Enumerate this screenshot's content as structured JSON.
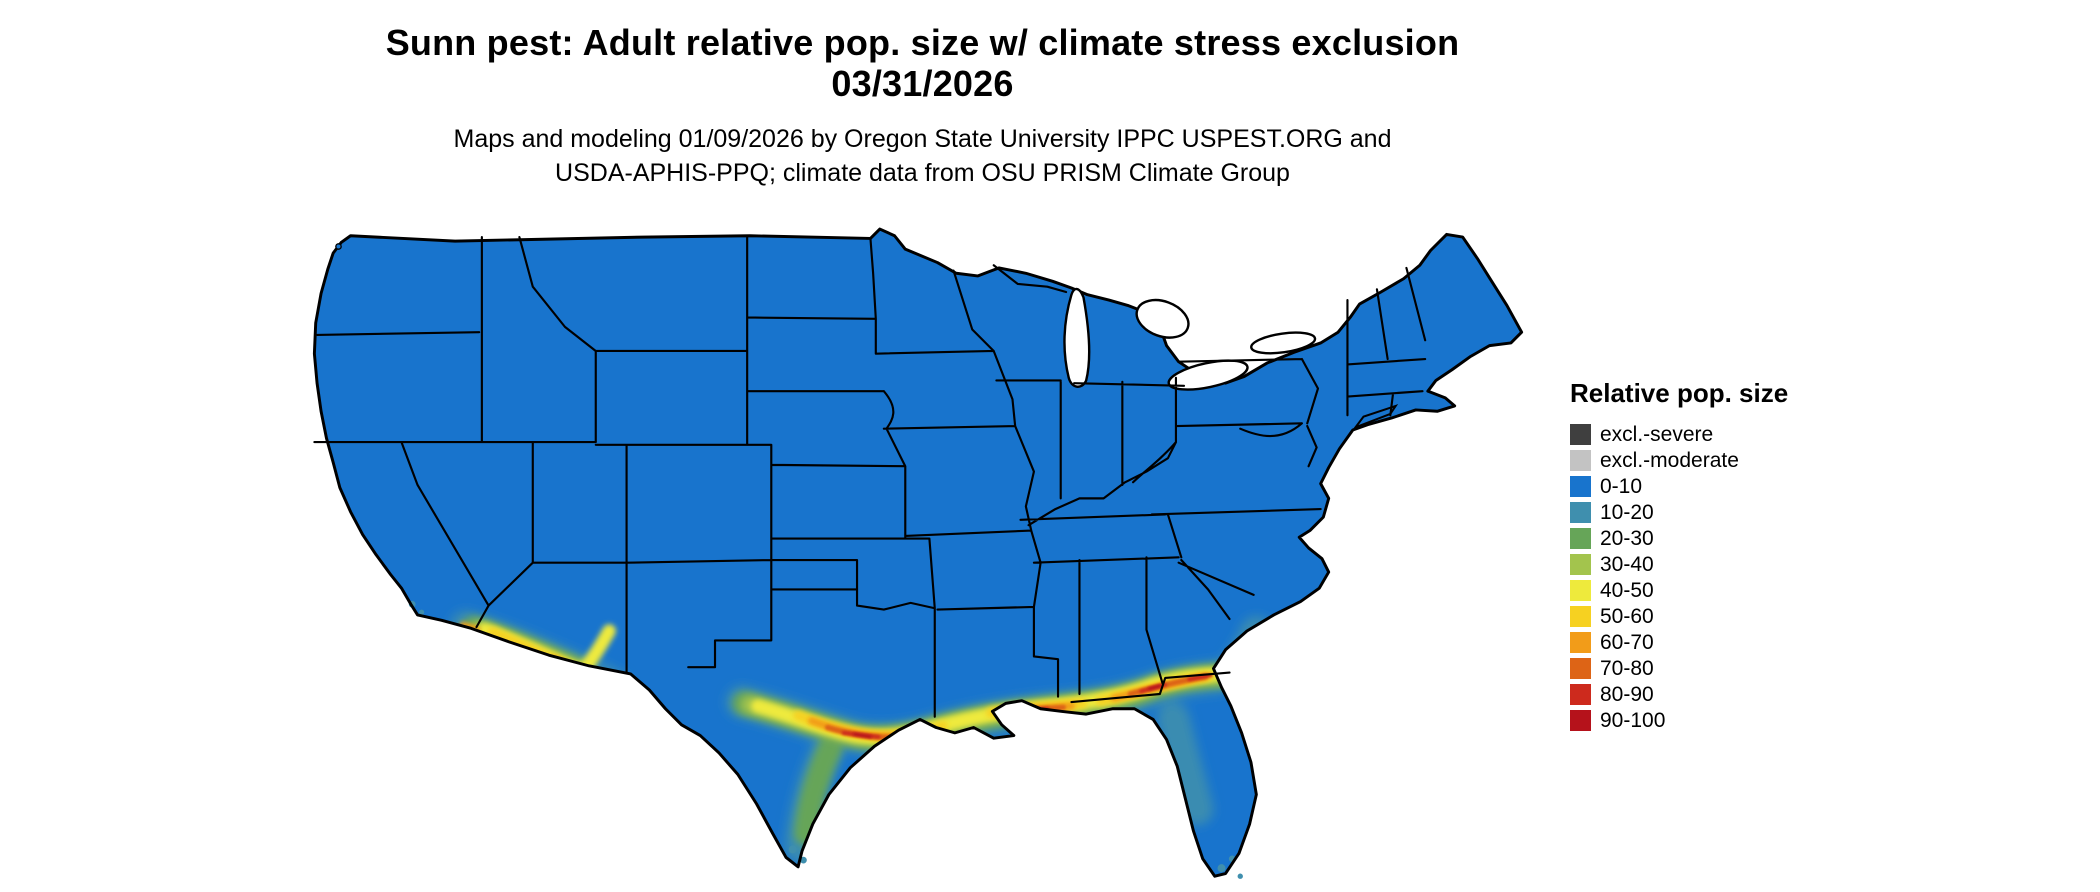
{
  "title": {
    "line1": "Sunn pest: Adult relative pop. size w/ climate stress exclusion",
    "line2": "03/31/2026"
  },
  "subtitle": {
    "line1": "Maps and modeling 01/09/2026 by Oregon State University IPPC USPEST.ORG and",
    "line2": "USDA-APHIS-PPQ; climate data from OSU PRISM Climate Group"
  },
  "legend": {
    "title": "Relative pop. size",
    "items": [
      {
        "label": "excl.-severe",
        "color": "#3f3f3f"
      },
      {
        "label": "excl.-moderate",
        "color": "#c3c3c3"
      },
      {
        "label": "0-10",
        "color": "#1874cd"
      },
      {
        "label": "10-20",
        "color": "#3f8fae"
      },
      {
        "label": "20-30",
        "color": "#66a558"
      },
      {
        "label": "30-40",
        "color": "#a3c44d"
      },
      {
        "label": "40-50",
        "color": "#eeea3c"
      },
      {
        "label": "50-60",
        "color": "#f6d121"
      },
      {
        "label": "60-70",
        "color": "#f29c19"
      },
      {
        "label": "70-80",
        "color": "#dd6416"
      },
      {
        "label": "80-90",
        "color": "#cd2a1d"
      },
      {
        "label": "90-100",
        "color": "#b5121b"
      }
    ]
  },
  "map": {
    "land_color": "#1874cd",
    "border_color": "#000000",
    "water_color": "#ffffff"
  }
}
